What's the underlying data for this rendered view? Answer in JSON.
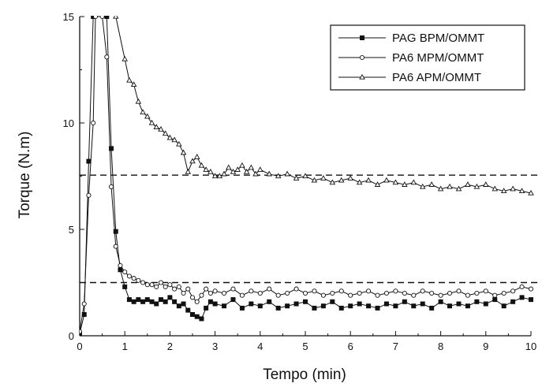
{
  "chart_data": {
    "type": "line",
    "xlabel": "Tempo (min)",
    "ylabel": "Torque (N.m)",
    "xlim": [
      0,
      10
    ],
    "ylim": [
      0,
      15
    ],
    "xticks": [
      "0",
      "1",
      "2",
      "3",
      "4",
      "5",
      "6",
      "7",
      "8",
      "9",
      "10"
    ],
    "yticks": [
      "0",
      "5",
      "10",
      "15"
    ],
    "grid": false,
    "legend_position": "top-right",
    "reference_lines": [
      7.55,
      2.5
    ],
    "series": [
      {
        "name": "PAG BPM/OMMT",
        "marker": "filled-square",
        "color": "#111111",
        "x": [
          0,
          0.1,
          0.2,
          0.3,
          0.6,
          0.7,
          0.8,
          0.9,
          1.0,
          1.1,
          1.2,
          1.3,
          1.4,
          1.5,
          1.6,
          1.7,
          1.8,
          1.9,
          2.0,
          2.1,
          2.2,
          2.3,
          2.4,
          2.5,
          2.6,
          2.7,
          2.8,
          2.9,
          3.0,
          3.2,
          3.4,
          3.6,
          3.8,
          4.0,
          4.2,
          4.4,
          4.6,
          4.8,
          5.0,
          5.2,
          5.4,
          5.6,
          5.8,
          6.0,
          6.2,
          6.4,
          6.6,
          6.8,
          7.0,
          7.2,
          7.4,
          7.6,
          7.8,
          8.0,
          8.2,
          8.4,
          8.6,
          8.8,
          9.0,
          9.2,
          9.4,
          9.6,
          9.8,
          10.0
        ],
        "y": [
          0.1,
          1.0,
          8.2,
          15,
          15,
          8.8,
          4.9,
          3.1,
          2.3,
          1.7,
          1.6,
          1.7,
          1.6,
          1.7,
          1.6,
          1.5,
          1.7,
          1.6,
          1.8,
          1.6,
          1.4,
          1.5,
          1.2,
          1.0,
          0.9,
          0.8,
          1.3,
          1.6,
          1.5,
          1.4,
          1.7,
          1.3,
          1.5,
          1.4,
          1.6,
          1.3,
          1.4,
          1.5,
          1.6,
          1.3,
          1.4,
          1.6,
          1.3,
          1.4,
          1.5,
          1.4,
          1.3,
          1.5,
          1.4,
          1.6,
          1.4,
          1.5,
          1.3,
          1.6,
          1.4,
          1.5,
          1.4,
          1.6,
          1.5,
          1.7,
          1.4,
          1.6,
          1.8,
          1.7
        ]
      },
      {
        "name": "PA6 MPM/OMMT",
        "marker": "open-circle",
        "color": "#111111",
        "x": [
          0,
          0.1,
          0.2,
          0.3,
          0.35,
          0.5,
          0.6,
          0.7,
          0.8,
          0.9,
          1.0,
          1.1,
          1.2,
          1.3,
          1.4,
          1.5,
          1.6,
          1.7,
          1.8,
          1.9,
          2.0,
          2.1,
          2.2,
          2.3,
          2.4,
          2.5,
          2.6,
          2.7,
          2.8,
          2.9,
          3.0,
          3.2,
          3.4,
          3.6,
          3.8,
          4.0,
          4.2,
          4.4,
          4.6,
          4.8,
          5.0,
          5.2,
          5.4,
          5.6,
          5.8,
          6.0,
          6.2,
          6.4,
          6.6,
          6.8,
          7.0,
          7.2,
          7.4,
          7.6,
          7.8,
          8.0,
          8.2,
          8.4,
          8.6,
          8.8,
          9.0,
          9.2,
          9.4,
          9.6,
          9.8,
          10.0
        ],
        "y": [
          0.2,
          1.5,
          6.6,
          10.0,
          15,
          15,
          13.1,
          7.0,
          4.2,
          3.3,
          3.0,
          2.8,
          2.7,
          2.6,
          2.5,
          2.4,
          2.4,
          2.3,
          2.5,
          2.3,
          2.4,
          2.2,
          2.3,
          2.0,
          2.2,
          1.8,
          1.6,
          1.9,
          2.2,
          2.0,
          2.1,
          2.0,
          2.2,
          1.9,
          2.1,
          2.0,
          2.2,
          1.9,
          2.0,
          2.2,
          2.0,
          2.1,
          1.9,
          2.0,
          2.1,
          1.9,
          2.0,
          2.1,
          1.9,
          2.0,
          2.1,
          2.0,
          1.9,
          2.1,
          2.0,
          1.9,
          2.0,
          2.1,
          1.9,
          2.0,
          2.1,
          1.9,
          2.0,
          2.1,
          2.3,
          2.2
        ]
      },
      {
        "name": "PA6 APM/OMMT",
        "marker": "open-triangle",
        "color": "#111111",
        "x": [
          0.8,
          1.0,
          1.1,
          1.2,
          1.3,
          1.4,
          1.5,
          1.6,
          1.7,
          1.8,
          1.9,
          2.0,
          2.1,
          2.2,
          2.3,
          2.4,
          2.5,
          2.6,
          2.7,
          2.8,
          2.9,
          3.0,
          3.1,
          3.2,
          3.3,
          3.4,
          3.5,
          3.6,
          3.7,
          3.8,
          3.9,
          4.0,
          4.2,
          4.4,
          4.6,
          4.8,
          5.0,
          5.2,
          5.4,
          5.6,
          5.8,
          6.0,
          6.2,
          6.4,
          6.6,
          6.8,
          7.0,
          7.2,
          7.4,
          7.6,
          7.8,
          8.0,
          8.2,
          8.4,
          8.6,
          8.8,
          9.0,
          9.2,
          9.4,
          9.6,
          9.8,
          10.0
        ],
        "y": [
          15,
          13.0,
          12.0,
          11.8,
          11.0,
          10.5,
          10.3,
          10.0,
          9.8,
          9.7,
          9.5,
          9.3,
          9.2,
          9.0,
          8.6,
          7.7,
          8.2,
          8.4,
          8.0,
          7.8,
          7.7,
          7.5,
          7.5,
          7.6,
          7.9,
          7.7,
          7.8,
          8.0,
          7.7,
          7.9,
          7.6,
          7.8,
          7.6,
          7.5,
          7.6,
          7.4,
          7.5,
          7.3,
          7.4,
          7.2,
          7.3,
          7.4,
          7.2,
          7.3,
          7.1,
          7.3,
          7.2,
          7.1,
          7.2,
          7.0,
          7.1,
          6.9,
          7.0,
          6.9,
          7.1,
          7.0,
          7.1,
          6.9,
          6.8,
          6.9,
          6.8,
          6.7
        ]
      }
    ]
  }
}
